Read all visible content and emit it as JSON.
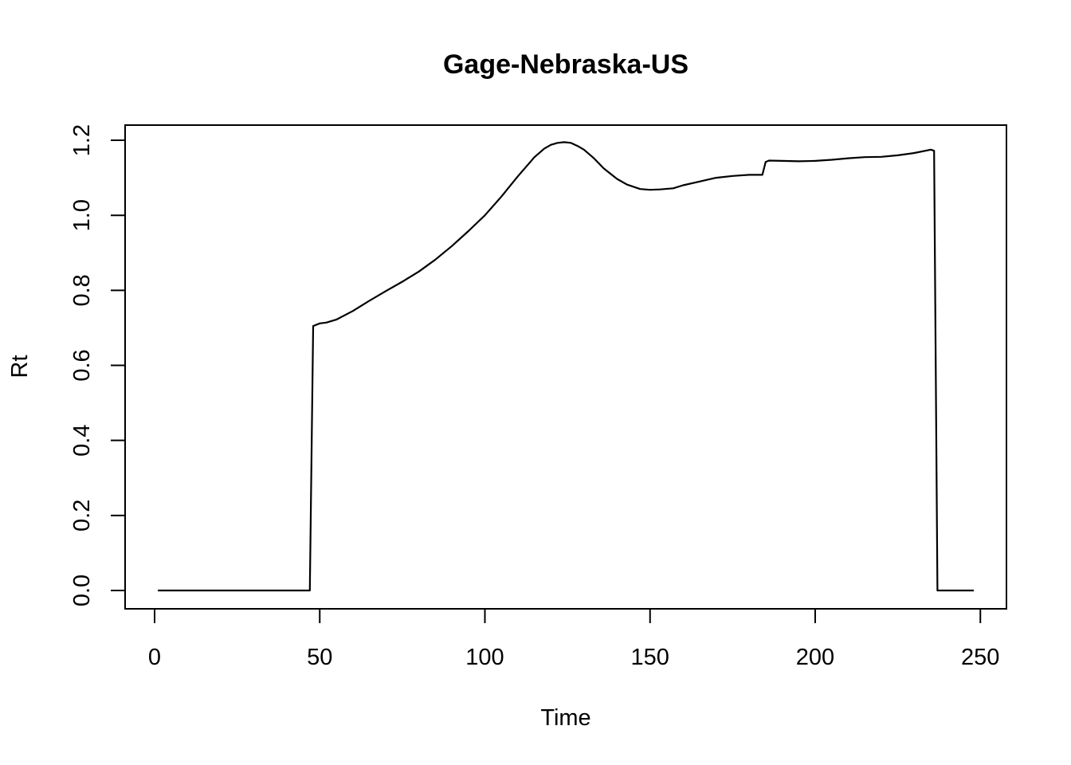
{
  "chart_data": {
    "type": "line",
    "title": "Gage-Nebraska-US",
    "xlabel": "Time",
    "ylabel": "Rt",
    "xlim": [
      0,
      250
    ],
    "ylim": [
      0,
      1.2
    ],
    "xticks": [
      0,
      50,
      100,
      150,
      200,
      250
    ],
    "xtick_labels": [
      "0",
      "50",
      "100",
      "150",
      "200",
      "250"
    ],
    "yticks": [
      0.0,
      0.2,
      0.4,
      0.6,
      0.8,
      1.0,
      1.2
    ],
    "ytick_labels": [
      "0.0",
      "0.2",
      "0.4",
      "0.6",
      "0.8",
      "1.0",
      "1.2"
    ],
    "grid": false,
    "series": [
      {
        "color": "#000000",
        "x": [
          1,
          47,
          48,
          50,
          52,
          55,
          60,
          65,
          70,
          75,
          80,
          85,
          90,
          95,
          100,
          105,
          110,
          115,
          118,
          120,
          122,
          124,
          126,
          128,
          130,
          133,
          136,
          140,
          143,
          147,
          150,
          153,
          157,
          160,
          165,
          170,
          175,
          180,
          184,
          185,
          186,
          190,
          195,
          200,
          205,
          210,
          215,
          220,
          225,
          230,
          235,
          236,
          237,
          238,
          240,
          245,
          248
        ],
        "y": [
          0,
          0,
          0.705,
          0.712,
          0.714,
          0.722,
          0.745,
          0.772,
          0.798,
          0.823,
          0.85,
          0.882,
          0.918,
          0.958,
          1.0,
          1.05,
          1.104,
          1.155,
          1.178,
          1.188,
          1.193,
          1.195,
          1.193,
          1.185,
          1.175,
          1.152,
          1.125,
          1.097,
          1.082,
          1.07,
          1.068,
          1.069,
          1.072,
          1.08,
          1.09,
          1.1,
          1.105,
          1.108,
          1.108,
          1.142,
          1.146,
          1.145,
          1.144,
          1.145,
          1.148,
          1.152,
          1.155,
          1.156,
          1.16,
          1.166,
          1.175,
          1.172,
          0,
          0,
          0,
          0,
          0
        ]
      }
    ]
  }
}
